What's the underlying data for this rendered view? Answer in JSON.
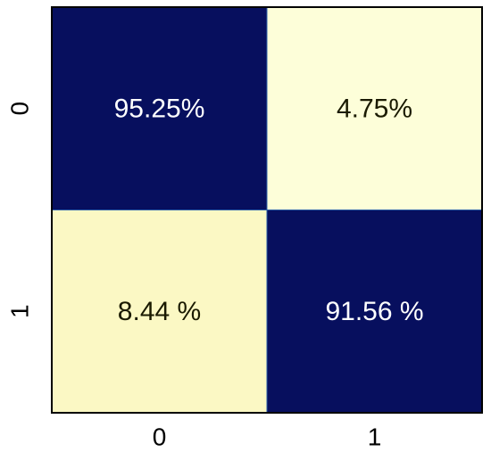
{
  "chart_data": {
    "type": "heatmap",
    "title": "",
    "xlabel": "",
    "ylabel": "",
    "x_categories": [
      "0",
      "1"
    ],
    "y_categories": [
      "0",
      "1"
    ],
    "values": [
      [
        95.25,
        4.75
      ],
      [
        8.44,
        91.56
      ]
    ],
    "cell_labels": [
      [
        "95.25%",
        "4.75%"
      ],
      [
        "8.44 %",
        "91.56 %"
      ]
    ],
    "colormap": "YlGnBu",
    "colorbar": false
  },
  "colors": {
    "high": "#070f5e",
    "low": "#fdfed9",
    "text_on_dark": "#ffffff",
    "text_on_light": "#1a1a00",
    "cell_border": "#2d5fa8",
    "frame": "#000000"
  }
}
